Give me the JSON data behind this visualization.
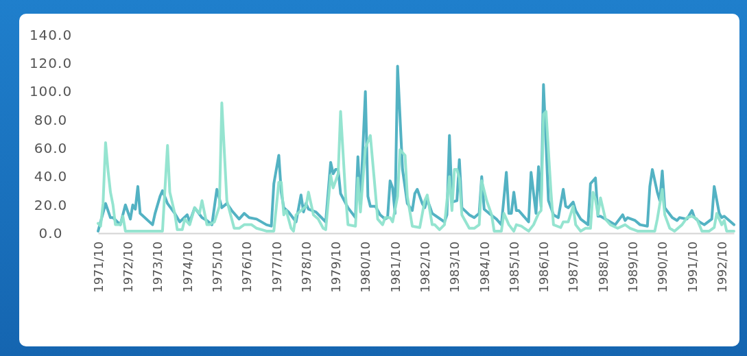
{
  "chart_data": {
    "type": "line",
    "xlim": [
      "1971-10",
      "1993-03"
    ],
    "xticks": [
      {
        "value": "1971-10",
        "label": "1971/10"
      },
      {
        "value": "1972-10",
        "label": "1972/10"
      },
      {
        "value": "1973-10",
        "label": "1973/10"
      },
      {
        "value": "1974-10",
        "label": "1974/10"
      },
      {
        "value": "1975-10",
        "label": "1975/10"
      },
      {
        "value": "1976-10",
        "label": "1976/10"
      },
      {
        "value": "1977-10",
        "label": "1977/10"
      },
      {
        "value": "1978-10",
        "label": "1978/10"
      },
      {
        "value": "1979-10",
        "label": "1979/10"
      },
      {
        "value": "1980-10",
        "label": "1980/10"
      },
      {
        "value": "1981-10",
        "label": "1981/10"
      },
      {
        "value": "1982-10",
        "label": "1982/10"
      },
      {
        "value": "1983-10",
        "label": "1983/10"
      },
      {
        "value": "1984-10",
        "label": "1984/10"
      },
      {
        "value": "1985-10",
        "label": "1985/10"
      },
      {
        "value": "1986-10",
        "label": "1986/10"
      },
      {
        "value": "1987-10",
        "label": "1987/10"
      },
      {
        "value": "1988-10",
        "label": "1988/10"
      },
      {
        "value": "1989-10",
        "label": "1989/10"
      },
      {
        "value": "1990-10",
        "label": "1990/10"
      },
      {
        "value": "1991-10",
        "label": "1991/10"
      },
      {
        "value": "1992-10",
        "label": "1992/10"
      }
    ],
    "ylim": [
      0,
      140
    ],
    "yticks": [
      {
        "value": 0,
        "label": "0.0"
      },
      {
        "value": 20,
        "label": "20.0"
      },
      {
        "value": 40,
        "label": "40.0"
      },
      {
        "value": 60,
        "label": "60.0"
      },
      {
        "value": 80,
        "label": "80.0"
      },
      {
        "value": 100,
        "label": "100.0"
      },
      {
        "value": 120,
        "label": "120.0"
      },
      {
        "value": 140,
        "label": "140.0"
      }
    ],
    "marker": "none",
    "line_style": "solid",
    "series": [
      {
        "color": "#4aaec0",
        "x": [
          "1971-10",
          "1972-01",
          "1972-03",
          "1972-04",
          "1972-07",
          "1972-09",
          "1972-11",
          "1972-12",
          "1973-01",
          "1973-02",
          "1973-03",
          "1973-08",
          "1973-09",
          "1973-11",
          "1973-12",
          "1974-02",
          "1974-05",
          "1974-07",
          "1974-10",
          "1974-11",
          "1975-01",
          "1975-04",
          "1975-06",
          "1975-08",
          "1975-10",
          "1975-12",
          "1976-02",
          "1976-04",
          "1976-07",
          "1976-09",
          "1976-11",
          "1977-02",
          "1977-06",
          "1977-08",
          "1977-09",
          "1977-11",
          "1977-12",
          "1978-01",
          "1978-03",
          "1978-06",
          "1978-08",
          "1978-09",
          "1978-10",
          "1978-11",
          "1979-02",
          "1979-06",
          "1979-08",
          "1979-09",
          "1979-10",
          "1979-11",
          "1979-12",
          "1980-03",
          "1980-06",
          "1980-07",
          "1980-08",
          "1980-10",
          "1980-11",
          "1980-12",
          "1981-02",
          "1981-04",
          "1981-06",
          "1981-07",
          "1981-08",
          "1981-09",
          "1981-10",
          "1981-11",
          "1982-01",
          "1982-03",
          "1982-05",
          "1982-06",
          "1982-07",
          "1982-09",
          "1982-10",
          "1982-11",
          "1983-01",
          "1983-06",
          "1983-07",
          "1983-08",
          "1983-09",
          "1983-11",
          "1983-12",
          "1984-01",
          "1984-04",
          "1984-06",
          "1984-08",
          "1984-09",
          "1984-10",
          "1984-12",
          "1985-03",
          "1985-05",
          "1985-07",
          "1985-08",
          "1985-09",
          "1985-10",
          "1985-11",
          "1985-12",
          "1986-04",
          "1986-05",
          "1986-07",
          "1986-08",
          "1986-09",
          "1986-10",
          "1986-12",
          "1987-02",
          "1987-04",
          "1987-06",
          "1987-07",
          "1987-08",
          "1987-10",
          "1987-11",
          "1988-01",
          "1988-04",
          "1988-05",
          "1988-07",
          "1988-08",
          "1988-09",
          "1988-12",
          "1989-03",
          "1989-06",
          "1989-07",
          "1989-08",
          "1989-11",
          "1990-01",
          "1990-04",
          "1990-05",
          "1990-06",
          "1990-08",
          "1990-09",
          "1990-10",
          "1990-11",
          "1991-02",
          "1991-04",
          "1991-05",
          "1991-08",
          "1991-10",
          "1991-11",
          "1992-01",
          "1992-03",
          "1992-06",
          "1992-07",
          "1992-09",
          "1992-10",
          "1992-11",
          "1993-03"
        ],
        "values": [
          1.5,
          21,
          11,
          11,
          6,
          20,
          10,
          20,
          17,
          33,
          14,
          6,
          14,
          26,
          30,
          21,
          14,
          8,
          13,
          8,
          18,
          11,
          9,
          6,
          31,
          18,
          21,
          16,
          10,
          14,
          11,
          10,
          6,
          5,
          35,
          55,
          29,
          18,
          15,
          8,
          27,
          15,
          21,
          17,
          15,
          8,
          50,
          42,
          45,
          45,
          28,
          18,
          11,
          54,
          21,
          100,
          26,
          19,
          19,
          13,
          10,
          11,
          37,
          32,
          14,
          118,
          45,
          21,
          16,
          28,
          31,
          21,
          18,
          24,
          14,
          8,
          13,
          69,
          22,
          23,
          52,
          18,
          13,
          11,
          14,
          40,
          17,
          14,
          10,
          6,
          43,
          14,
          14,
          29,
          16,
          16,
          8,
          43,
          14,
          47,
          19,
          105,
          23,
          13,
          11,
          31,
          19,
          18,
          22,
          16,
          10,
          6,
          35,
          39,
          12,
          12,
          9,
          6,
          13,
          9,
          11,
          9,
          6,
          5,
          33,
          45,
          29,
          23,
          44,
          18,
          11,
          9,
          11,
          10,
          16,
          11,
          8,
          6,
          10,
          33,
          14,
          11,
          12,
          6
        ]
      },
      {
        "color": "#8fe3cd",
        "x": [
          "1971-10",
          "1971-11",
          "1971-12",
          "1972-01",
          "1972-02",
          "1972-03",
          "1972-04",
          "1972-05",
          "1972-07",
          "1972-08",
          "1972-09",
          "1973-12",
          "1974-02",
          "1974-03",
          "1974-05",
          "1974-06",
          "1974-08",
          "1974-09",
          "1974-11",
          "1975-01",
          "1975-03",
          "1975-04",
          "1975-06",
          "1975-07",
          "1975-09",
          "1975-11",
          "1975-12",
          "1976-02",
          "1976-05",
          "1976-07",
          "1976-09",
          "1976-12",
          "1977-02",
          "1977-06",
          "1977-09",
          "1977-11",
          "1977-12",
          "1978-01",
          "1978-02",
          "1978-04",
          "1978-05",
          "1978-06",
          "1978-08",
          "1978-10",
          "1978-11",
          "1979-01",
          "1979-03",
          "1979-05",
          "1979-06",
          "1979-08",
          "1979-09",
          "1979-11",
          "1979-12",
          "1980-02",
          "1980-03",
          "1980-06",
          "1980-07",
          "1980-08",
          "1980-10",
          "1980-12",
          "1981-02",
          "1981-03",
          "1981-05",
          "1981-06",
          "1981-08",
          "1981-09",
          "1981-11",
          "1981-12",
          "1982-02",
          "1982-03",
          "1982-05",
          "1982-08",
          "1982-10",
          "1982-11",
          "1983-01",
          "1983-02",
          "1983-04",
          "1983-06",
          "1983-08",
          "1983-09",
          "1983-10",
          "1983-11",
          "1983-12",
          "1984-01",
          "1984-04",
          "1984-06",
          "1984-08",
          "1984-09",
          "1984-11",
          "1985-01",
          "1985-02",
          "1985-05",
          "1985-06",
          "1985-08",
          "1985-10",
          "1985-11",
          "1986-01",
          "1986-04",
          "1986-06",
          "1986-08",
          "1986-09",
          "1986-10",
          "1986-11",
          "1987-01",
          "1987-02",
          "1987-05",
          "1987-06",
          "1987-08",
          "1987-10",
          "1987-11",
          "1988-01",
          "1988-03",
          "1988-05",
          "1988-06",
          "1988-07",
          "1988-08",
          "1988-09",
          "1988-11",
          "1989-01",
          "1989-04",
          "1989-07",
          "1989-09",
          "1989-12",
          "1990-05",
          "1990-07",
          "1990-08",
          "1990-10",
          "1990-11",
          "1991-01",
          "1991-03",
          "1991-06",
          "1991-08",
          "1991-10",
          "1991-12",
          "1992-02",
          "1992-05",
          "1992-07",
          "1992-08",
          "1992-10",
          "1992-11",
          "1992-12",
          "1993-03"
        ],
        "values": [
          7,
          5,
          21,
          64,
          44,
          29,
          20,
          6,
          6,
          12,
          1.5,
          1.5,
          62,
          29,
          14,
          2.5,
          2.5,
          10,
          6,
          18,
          14,
          23,
          6,
          6,
          8,
          19,
          92,
          23,
          3.5,
          3.5,
          6,
          6,
          3.5,
          1.5,
          1.5,
          36,
          36,
          13,
          16,
          3.5,
          1.5,
          13,
          16,
          19,
          29,
          13,
          10,
          3.5,
          2.5,
          41,
          32,
          42,
          86,
          26,
          6,
          5,
          39,
          15,
          60,
          69,
          29,
          10,
          6,
          11,
          11,
          8,
          26,
          59,
          55,
          26,
          5,
          4,
          23,
          27,
          6,
          6,
          2.5,
          6,
          40,
          16,
          45,
          45,
          39,
          13,
          3.5,
          3.5,
          6,
          37,
          23,
          13,
          1.5,
          1.5,
          14,
          6,
          1.5,
          6,
          5,
          1.5,
          6,
          14,
          16,
          84,
          86,
          29,
          6,
          4,
          8,
          8,
          19,
          6,
          1.5,
          3.5,
          3.5,
          29,
          24,
          13,
          25,
          10,
          6,
          3.5,
          6,
          3.5,
          1.5,
          1.5,
          1.5,
          10,
          31,
          13,
          3.5,
          1.5,
          6,
          11,
          12,
          10,
          1.5,
          1.5,
          4,
          14,
          6,
          9,
          1.5,
          1.5
        ]
      }
    ]
  }
}
